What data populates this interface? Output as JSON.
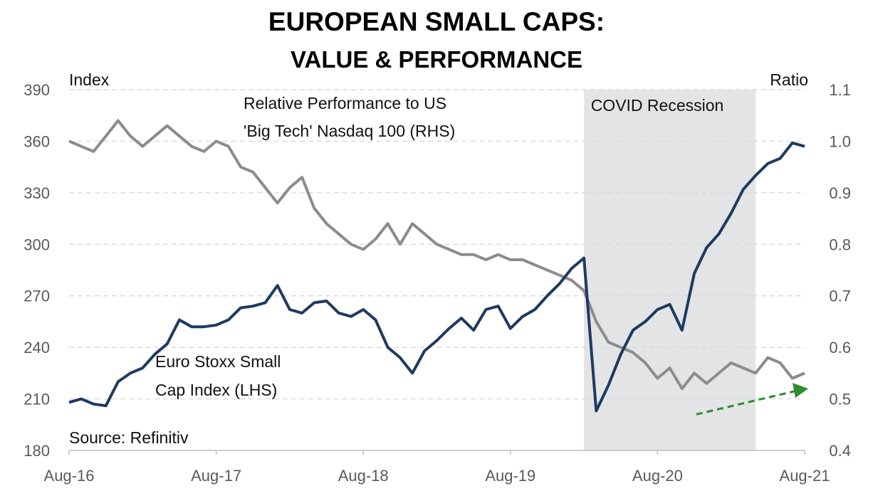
{
  "colors": {
    "index_series": "#1f3a5f",
    "ratio_series": "#8c8c8c",
    "recession_shade": "#e3e4e6",
    "grid": "#d9d9d9",
    "arrow": "#2e8b2e"
  },
  "chart_data": {
    "type": "line",
    "title": "EUROPEAN SMALL CAPS:",
    "subtitle": "VALUE & PERFORMANCE",
    "ylabel_left": "Index",
    "ylabel_right": "Ratio",
    "source": "Source: Refinitiv",
    "x_ticks": [
      "Aug-16",
      "Aug-17",
      "Aug-18",
      "Aug-19",
      "Aug-20",
      "Aug-21"
    ],
    "y_left": {
      "lim": [
        180,
        390
      ],
      "ticks": [
        "180",
        "210",
        "240",
        "270",
        "300",
        "330",
        "360",
        "390"
      ]
    },
    "y_right": {
      "lim": [
        0.4,
        1.1
      ],
      "ticks": [
        "0.4",
        "0.5",
        "0.6",
        "0.7",
        "0.8",
        "0.9",
        "1.0",
        "1.1"
      ]
    },
    "grid": "horizontal dashed",
    "shaded_region": {
      "label": "COVID Recession",
      "start": "Feb-20",
      "end": "Apr-21"
    },
    "annotation_arrow": {
      "from": [
        "Oct-20",
        0.47
      ],
      "to": [
        "Aug-21",
        0.52
      ],
      "style": "dashed",
      "color": "green"
    },
    "series": [
      {
        "name": "Euro Stoxx Small Cap Index (LHS)",
        "label_line1": "Euro Stoxx Small",
        "label_line2": "Cap Index (LHS)",
        "axis": "left",
        "points": [
          [
            "Aug-16",
            208
          ],
          [
            "Sep-16",
            210
          ],
          [
            "Oct-16",
            207
          ],
          [
            "Nov-16",
            206
          ],
          [
            "Dec-16",
            220
          ],
          [
            "Jan-17",
            225
          ],
          [
            "Feb-17",
            228
          ],
          [
            "Mar-17",
            236
          ],
          [
            "Apr-17",
            242
          ],
          [
            "May-17",
            256
          ],
          [
            "Jun-17",
            252
          ],
          [
            "Jul-17",
            252
          ],
          [
            "Aug-17",
            253
          ],
          [
            "Sep-17",
            256
          ],
          [
            "Oct-17",
            263
          ],
          [
            "Nov-17",
            264
          ],
          [
            "Dec-17",
            266
          ],
          [
            "Jan-18",
            276
          ],
          [
            "Feb-18",
            262
          ],
          [
            "Mar-18",
            260
          ],
          [
            "Apr-18",
            266
          ],
          [
            "May-18",
            267
          ],
          [
            "Jun-18",
            260
          ],
          [
            "Jul-18",
            258
          ],
          [
            "Aug-18",
            262
          ],
          [
            "Sep-18",
            256
          ],
          [
            "Oct-18",
            240
          ],
          [
            "Nov-18",
            234
          ],
          [
            "Dec-18",
            225
          ],
          [
            "Jan-19",
            238
          ],
          [
            "Feb-19",
            244
          ],
          [
            "Mar-19",
            251
          ],
          [
            "Apr-19",
            257
          ],
          [
            "May-19",
            250
          ],
          [
            "Jun-19",
            262
          ],
          [
            "Jul-19",
            264
          ],
          [
            "Aug-19",
            251
          ],
          [
            "Sep-19",
            258
          ],
          [
            "Oct-19",
            262
          ],
          [
            "Nov-19",
            270
          ],
          [
            "Dec-19",
            277
          ],
          [
            "Jan-20",
            286
          ],
          [
            "Feb-20",
            292
          ],
          [
            "Mar-20",
            203
          ],
          [
            "Apr-20",
            218
          ],
          [
            "May-20",
            236
          ],
          [
            "Jun-20",
            250
          ],
          [
            "Jul-20",
            255
          ],
          [
            "Aug-20",
            262
          ],
          [
            "Sep-20",
            265
          ],
          [
            "Oct-20",
            250
          ],
          [
            "Nov-20",
            283
          ],
          [
            "Dec-20",
            298
          ],
          [
            "Jan-21",
            306
          ],
          [
            "Feb-21",
            318
          ],
          [
            "Mar-21",
            332
          ],
          [
            "Apr-21",
            340
          ],
          [
            "May-21",
            347
          ],
          [
            "Jun-21",
            350
          ],
          [
            "Jul-21",
            359
          ],
          [
            "Aug-21",
            357
          ]
        ]
      },
      {
        "name": "Relative Performance to US 'Big Tech' Nasdaq 100 (RHS)",
        "label_line1": "Relative Performance to US",
        "label_line2": "'Big Tech' Nasdaq 100 (RHS)",
        "axis": "right",
        "points": [
          [
            "Aug-16",
            1.0
          ],
          [
            "Sep-16",
            0.99
          ],
          [
            "Oct-16",
            0.98
          ],
          [
            "Nov-16",
            1.01
          ],
          [
            "Dec-16",
            1.04
          ],
          [
            "Jan-17",
            1.01
          ],
          [
            "Feb-17",
            0.99
          ],
          [
            "Mar-17",
            1.01
          ],
          [
            "Apr-17",
            1.03
          ],
          [
            "May-17",
            1.01
          ],
          [
            "Jun-17",
            0.99
          ],
          [
            "Jul-17",
            0.98
          ],
          [
            "Aug-17",
            1.0
          ],
          [
            "Sep-17",
            0.99
          ],
          [
            "Oct-17",
            0.95
          ],
          [
            "Nov-17",
            0.94
          ],
          [
            "Dec-17",
            0.91
          ],
          [
            "Jan-18",
            0.88
          ],
          [
            "Feb-18",
            0.91
          ],
          [
            "Mar-18",
            0.93
          ],
          [
            "Apr-18",
            0.87
          ],
          [
            "May-18",
            0.84
          ],
          [
            "Jun-18",
            0.82
          ],
          [
            "Jul-18",
            0.8
          ],
          [
            "Aug-18",
            0.79
          ],
          [
            "Sep-18",
            0.81
          ],
          [
            "Oct-18",
            0.84
          ],
          [
            "Nov-18",
            0.8
          ],
          [
            "Dec-18",
            0.84
          ],
          [
            "Jan-19",
            0.82
          ],
          [
            "Feb-19",
            0.8
          ],
          [
            "Mar-19",
            0.79
          ],
          [
            "Apr-19",
            0.78
          ],
          [
            "May-19",
            0.78
          ],
          [
            "Jun-19",
            0.77
          ],
          [
            "Jul-19",
            0.78
          ],
          [
            "Aug-19",
            0.77
          ],
          [
            "Sep-19",
            0.77
          ],
          [
            "Oct-19",
            0.76
          ],
          [
            "Nov-19",
            0.75
          ],
          [
            "Dec-19",
            0.74
          ],
          [
            "Jan-20",
            0.73
          ],
          [
            "Feb-20",
            0.71
          ],
          [
            "Mar-20",
            0.65
          ],
          [
            "Apr-20",
            0.61
          ],
          [
            "May-20",
            0.6
          ],
          [
            "Jun-20",
            0.59
          ],
          [
            "Jul-20",
            0.57
          ],
          [
            "Aug-20",
            0.54
          ],
          [
            "Sep-20",
            0.56
          ],
          [
            "Oct-20",
            0.52
          ],
          [
            "Nov-20",
            0.55
          ],
          [
            "Dec-20",
            0.53
          ],
          [
            "Jan-21",
            0.55
          ],
          [
            "Feb-21",
            0.57
          ],
          [
            "Mar-21",
            0.56
          ],
          [
            "Apr-21",
            0.55
          ],
          [
            "May-21",
            0.58
          ],
          [
            "Jun-21",
            0.57
          ],
          [
            "Jul-21",
            0.54
          ],
          [
            "Aug-21",
            0.55
          ]
        ]
      }
    ]
  }
}
